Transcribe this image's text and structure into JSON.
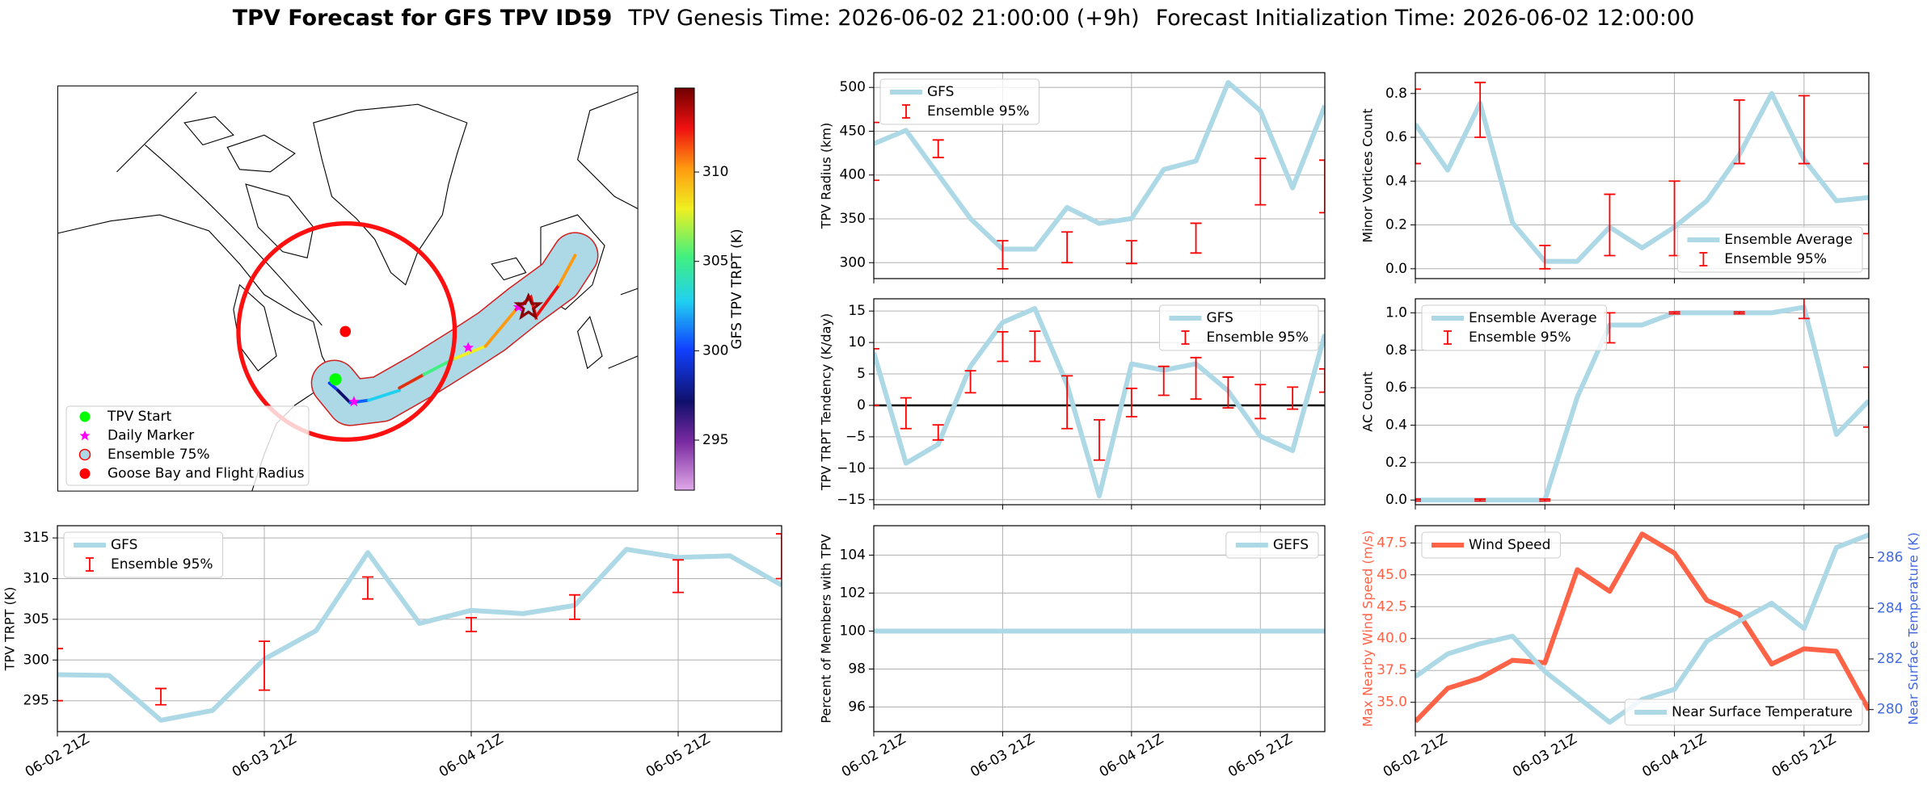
{
  "suptitle": {
    "name": "TPV Forecast for GFS TPV ID59",
    "genesis": "TPV Genesis Time: 2026-06-02 21:00:00 (+9h)",
    "init": "Forecast Initialization Time: 2026-06-02 12:00:00"
  },
  "chart_data": [
    {
      "type": "map",
      "legend": [
        {
          "label": "TPV Start",
          "color": "#00ff00",
          "marker": "circle"
        },
        {
          "label": "Daily Marker",
          "color": "#ff00ff",
          "marker": "star"
        },
        {
          "label": "Ensemble 75%",
          "color": "#add8e6",
          "edgecolor": "#ff0000",
          "marker": "circle"
        },
        {
          "label": "Goose Bay and Flight Radius",
          "color": "#ff0000",
          "marker": "circle"
        }
      ],
      "colorbar": {
        "label": "GFS TPV TRPT (K)",
        "clim": [
          292.2,
          314.7
        ],
        "ticks": [
          295,
          300,
          305,
          310
        ]
      }
    },
    {
      "type": "line",
      "ylabel": "TPV TRPT (K)",
      "grid": true,
      "legend": "upper left",
      "categories": [
        "06-02 21Z",
        null,
        null,
        null,
        "06-03 21Z",
        null,
        null,
        null,
        "06-04 21Z",
        null,
        null,
        null,
        "06-05 21Z",
        null,
        null
      ],
      "ylim": [
        291.2,
        316.5
      ],
      "yticks": [
        295,
        300,
        305,
        310,
        315
      ],
      "series": [
        {
          "name": "GFS",
          "color": "#add8e6",
          "kind": "line",
          "values": [
            298.2,
            298.1,
            292.6,
            293.8,
            300.1,
            303.6,
            313.2,
            304.5,
            306.1,
            305.7,
            306.7,
            313.6,
            312.6,
            312.8,
            309.2
          ]
        },
        {
          "name": "Ensemble 95%",
          "color": "#ff0000",
          "kind": "errorbar",
          "values": [
            298.2,
            null,
            295.5,
            null,
            299.3,
            null,
            308.85,
            null,
            304.35,
            null,
            306.5,
            null,
            310.3,
            null,
            312.75
          ],
          "errors": [
            3.2,
            null,
            1,
            null,
            3,
            null,
            1.35,
            null,
            0.85,
            null,
            1.5,
            null,
            2,
            null,
            2.75
          ]
        }
      ]
    },
    {
      "type": "line",
      "ylabel": "TPV Radius (km)",
      "grid": true,
      "legend": "upper left",
      "ylim": [
        281.8,
        516.8
      ],
      "yticks": [
        300,
        350,
        400,
        450,
        500
      ],
      "series": [
        {
          "name": "GFS",
          "color": "#add8e6",
          "kind": "line",
          "values": [
            435.7,
            451,
            400.7,
            350.3,
            315.4,
            315.4,
            363,
            344.8,
            350.3,
            406.3,
            416,
            505.6,
            473.4,
            385.3,
            479
          ]
        },
        {
          "name": "Ensemble 95%",
          "color": "#ff0000",
          "kind": "errorbar",
          "values": [
            427,
            null,
            430,
            null,
            309,
            null,
            317.5,
            null,
            312,
            null,
            328,
            null,
            392.5,
            null,
            387
          ],
          "errors": [
            33,
            null,
            10,
            null,
            16,
            null,
            17.5,
            null,
            13,
            null,
            17,
            null,
            26.5,
            null,
            30
          ]
        }
      ]
    },
    {
      "type": "line",
      "ylabel": "TPV TRPT Tendency (K/day)",
      "grid": true,
      "legend": "upper right",
      "hline": 0,
      "ylim": [
        -15.8,
        16.95
      ],
      "yticks": [
        {
          "value": -15,
          "label": "−15"
        },
        {
          "value": -10,
          "label": "−10"
        },
        {
          "value": -5,
          "label": "−5"
        },
        0,
        5,
        10,
        15
      ],
      "series": [
        {
          "name": "GFS",
          "color": "#add8e6",
          "kind": "line",
          "values": [
            8.4,
            -9.2,
            -6.2,
            6.2,
            13.2,
            15.4,
            3.3,
            -14.4,
            6.6,
            5.6,
            6.6,
            2.3,
            -4.9,
            -7.2,
            11.3
          ]
        },
        {
          "name": "Ensemble 95%",
          "color": "#ff0000",
          "kind": "errorbar",
          "values": [
            4.5,
            -1.25,
            -4.3,
            3.75,
            9.35,
            9.4,
            0.5,
            -5.5,
            0.45,
            3.9,
            4.3,
            2.05,
            0.6,
            1.15,
            3.95
          ],
          "errors": [
            4.5,
            2.45,
            1.2,
            1.75,
            2.35,
            2.4,
            4.2,
            3.2,
            2.25,
            2.3,
            3.3,
            2.45,
            2.7,
            1.75,
            1.85
          ]
        }
      ]
    },
    {
      "type": "line",
      "ylabel": "Percent of Members with TPV",
      "grid": true,
      "legend": "upper right",
      "categories": [
        "06-02 21Z",
        null,
        null,
        null,
        "06-03 21Z",
        null,
        null,
        null,
        "06-04 21Z",
        null,
        null,
        null,
        "06-05 21Z",
        null,
        null
      ],
      "ylim": [
        94.7,
        105.55
      ],
      "yticks": [
        96,
        98,
        100,
        102,
        104
      ],
      "series": [
        {
          "name": "GEFS",
          "color": "#add8e6",
          "kind": "line",
          "values": [
            100,
            100,
            100,
            100,
            100,
            100,
            100,
            100,
            100,
            100,
            100,
            100,
            100,
            100,
            100
          ]
        }
      ]
    },
    {
      "type": "line",
      "ylabel": "Minor Vortices Count",
      "grid": true,
      "legend": "lower right",
      "ylim": [
        -0.045,
        0.895
      ],
      "yticks": [
        {
          "value": 0,
          "label": "0.0"
        },
        0.2,
        0.4,
        0.6,
        0.8
      ],
      "series": [
        {
          "name": "Ensemble Average",
          "color": "#add8e6",
          "kind": "line",
          "values": [
            0.66,
            0.45,
            0.755,
            0.21,
            0.034,
            0.034,
            0.19,
            0.095,
            0.19,
            0.31,
            0.52,
            0.8,
            0.5,
            0.31,
            0.325
          ]
        },
        {
          "name": "Ensemble 95%",
          "color": "#ff0000",
          "kind": "errorbar",
          "values": [
            0.65,
            null,
            0.725,
            null,
            0.053,
            null,
            0.2,
            null,
            0.23,
            null,
            0.625,
            null,
            0.635,
            null,
            0.32
          ],
          "errors": [
            0.17,
            null,
            0.125,
            null,
            0.053,
            null,
            0.14,
            null,
            0.17,
            null,
            0.145,
            null,
            0.155,
            null,
            0.16
          ]
        }
      ]
    },
    {
      "type": "line",
      "ylabel": "AC Count",
      "grid": true,
      "legend": "upper left",
      "ylim": [
        -0.025,
        1.075
      ],
      "yticks": [
        {
          "value": 0,
          "label": "0.0"
        },
        0.2,
        0.4,
        0.6,
        0.8,
        {
          "value": 1,
          "label": "1.0"
        }
      ],
      "series": [
        {
          "name": "Ensemble Average",
          "color": "#add8e6",
          "kind": "line",
          "values": [
            0,
            0,
            0,
            0,
            0,
            0.55,
            0.935,
            0.935,
            1,
            1,
            1,
            1,
            1.03,
            0.35,
            0.53
          ]
        },
        {
          "name": "Ensemble 95%",
          "color": "#ff0000",
          "kind": "errorbar",
          "values": [
            0,
            null,
            0,
            null,
            0,
            null,
            0.92,
            null,
            1,
            null,
            1,
            null,
            1.03,
            null,
            0.55
          ],
          "errors": [
            0.005,
            null,
            0.005,
            null,
            0.005,
            null,
            0.08,
            null,
            0.005,
            null,
            0.005,
            null,
            0.06,
            null,
            0.16
          ]
        }
      ]
    },
    {
      "type": "line",
      "ylabel": "Max Nearby Wind Speed (m/s)",
      "y2label": "Near Surface Temperature (K)",
      "grid": true,
      "legend": "upper left",
      "legend_y2": "lower right",
      "categories": [
        "06-02 21Z",
        null,
        null,
        null,
        "06-03 21Z",
        null,
        null,
        null,
        "06-04 21Z",
        null,
        null,
        null,
        "06-05 21Z",
        null,
        null
      ],
      "ylim": [
        32.7,
        48.85
      ],
      "yticks": [
        {
          "value": 35,
          "label": "35.0"
        },
        37.5,
        {
          "value": 40,
          "label": "40.0"
        },
        42.5,
        {
          "value": 45,
          "label": "45.0"
        },
        47.5
      ],
      "y2lim": [
        279.13,
        287.26
      ],
      "y2ticks": [
        280,
        282,
        284,
        286
      ],
      "series": [
        {
          "name": "Wind Speed",
          "color": "#ff6347",
          "kind": "line",
          "values": [
            33.5,
            36.1,
            36.9,
            38.3,
            38.1,
            45.4,
            43.7,
            48.2,
            46.7,
            43.0,
            41.9,
            38.0,
            39.2,
            39.0,
            34.4
          ]
        },
        {
          "name": "Near Surface Temperature",
          "color": "#4169e1",
          "line_color": "#add8e6",
          "kind": "line",
          "axis": "y2",
          "values": [
            281.3,
            282.2,
            282.6,
            282.9,
            281.5,
            280.5,
            279.5,
            280.4,
            280.8,
            282.7,
            283.5,
            284.2,
            283.2,
            286.4,
            286.9
          ]
        }
      ]
    }
  ]
}
